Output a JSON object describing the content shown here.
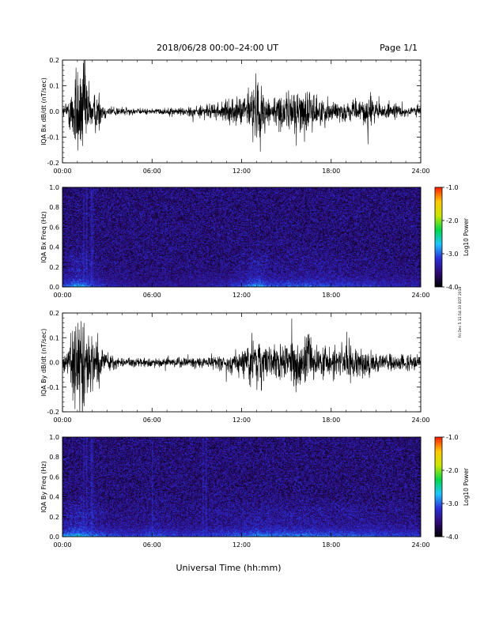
{
  "header": {
    "title": "2018/06/28  00:00–24:00 UT",
    "page": "Page 1/1"
  },
  "side_note": "Fri Dec 5 11:54:33 EDT 2018",
  "colors": {
    "trace": "#000000",
    "spectrogram_background": "#2a0f8f",
    "colorbar_stops": [
      "#000000",
      "#2d0a73",
      "#2a2fd6",
      "#1ec5ff",
      "#00d84a",
      "#c8e600",
      "#ffc800",
      "#ff1a00"
    ]
  },
  "chart_data": [
    {
      "type": "line",
      "ylabel": "IQA Bx dB/dt (nT/sec)",
      "xlabel": "",
      "x_ticks": [
        "00:00",
        "06:00",
        "12:00",
        "18:00",
        "24:00"
      ],
      "xlim": [
        0,
        24
      ],
      "ylim": [
        -0.2,
        0.2
      ],
      "y_ticks": [
        "0.2",
        "0.1",
        "0.0",
        "-0.1",
        "-0.2"
      ],
      "envelope": {
        "hours": [
          0,
          0.3,
          0.6,
          0.9,
          1.2,
          1.5,
          1.8,
          2.1,
          2.4,
          2.7,
          3,
          4,
          5,
          6,
          7,
          8,
          9,
          10,
          11,
          12,
          12.5,
          13,
          13.5,
          14,
          15,
          15.5,
          16,
          16.5,
          17,
          18,
          19,
          20,
          20.5,
          21,
          22,
          23,
          24
        ],
        "amplitude": [
          0.015,
          0.04,
          0.08,
          0.2,
          0.15,
          0.2,
          0.08,
          0.06,
          0.08,
          0.03,
          0.02,
          0.015,
          0.01,
          0.01,
          0.012,
          0.015,
          0.02,
          0.025,
          0.035,
          0.05,
          0.08,
          0.12,
          0.07,
          0.05,
          0.06,
          0.09,
          0.07,
          0.08,
          0.05,
          0.04,
          0.03,
          0.035,
          0.08,
          0.03,
          0.025,
          0.02,
          0.02
        ]
      }
    },
    {
      "type": "heatmap",
      "ylabel": "IQA Bx Freq (Hz)",
      "xlabel": "",
      "x_ticks": [
        "00:00",
        "06:00",
        "12:00",
        "18:00",
        "24:00"
      ],
      "xlim": [
        0,
        24
      ],
      "ylim": [
        0,
        1
      ],
      "y_ticks": [
        "1.0",
        "0.8",
        "0.6",
        "0.4",
        "0.2",
        "0.0"
      ],
      "colorbar": {
        "label": "Log10 Power",
        "ticks": [
          "-1.0",
          "-2.0",
          "-3.0",
          "-4.0"
        ],
        "range": [
          -4,
          -1
        ]
      },
      "low_freq_band": {
        "hours": [
          0,
          1,
          2,
          3,
          5,
          8,
          11,
          12,
          13,
          14,
          16,
          18,
          20,
          22,
          24
        ],
        "level": [
          -3.0,
          -2.6,
          -3.0,
          -3.2,
          -3.4,
          -3.4,
          -3.2,
          -3.0,
          -2.6,
          -3.0,
          -2.9,
          -3.0,
          -3.1,
          -3.2,
          -3.3
        ]
      },
      "vertical_bursts_hours": [
        1.4,
        1.6,
        1.9,
        2.0
      ]
    },
    {
      "type": "line",
      "ylabel": "IQA By dB/dt (nT/sec)",
      "xlabel": "",
      "x_ticks": [
        "00:00",
        "06:00",
        "12:00",
        "18:00",
        "24:00"
      ],
      "xlim": [
        0,
        24
      ],
      "ylim": [
        -0.2,
        0.2
      ],
      "y_ticks": [
        "0.2",
        "0.1",
        "0.0",
        "-0.1",
        "-0.2"
      ],
      "envelope": {
        "hours": [
          0,
          0.3,
          0.6,
          0.9,
          1.2,
          1.5,
          1.8,
          2.1,
          2.4,
          2.7,
          3,
          4,
          5,
          6,
          7,
          8,
          9,
          10,
          11,
          12,
          12.5,
          13,
          13.5,
          14,
          15,
          15.5,
          16,
          16.5,
          17,
          18,
          19,
          20,
          20.5,
          21,
          22,
          23,
          24
        ],
        "amplitude": [
          0.02,
          0.05,
          0.1,
          0.2,
          0.18,
          0.2,
          0.12,
          0.1,
          0.1,
          0.04,
          0.03,
          0.02,
          0.015,
          0.015,
          0.015,
          0.02,
          0.02,
          0.025,
          0.03,
          0.05,
          0.08,
          0.1,
          0.07,
          0.05,
          0.07,
          0.09,
          0.07,
          0.12,
          0.06,
          0.05,
          0.07,
          0.05,
          0.04,
          0.03,
          0.03,
          0.03,
          0.02
        ]
      }
    },
    {
      "type": "heatmap",
      "ylabel": "IQA By Freq (Hz)",
      "xlabel": "Universal Time (hh:mm)",
      "x_ticks": [
        "00:00",
        "06:00",
        "12:00",
        "18:00",
        "24:00"
      ],
      "xlim": [
        0,
        24
      ],
      "ylim": [
        0,
        1
      ],
      "y_ticks": [
        "1.0",
        "0.8",
        "0.6",
        "0.4",
        "0.2",
        "0.0"
      ],
      "colorbar": {
        "label": "Log10 Power",
        "ticks": [
          "-1.0",
          "-2.0",
          "-3.0",
          "-4.0"
        ],
        "range": [
          -4,
          -1
        ]
      },
      "low_freq_band": {
        "hours": [
          0,
          1,
          2,
          3,
          5,
          6,
          8,
          10,
          12,
          13,
          14,
          16,
          18,
          20,
          22,
          24
        ],
        "level": [
          -2.8,
          -2.5,
          -2.8,
          -3.0,
          -3.1,
          -2.9,
          -3.1,
          -3.0,
          -2.9,
          -2.7,
          -2.8,
          -2.8,
          -2.9,
          -2.9,
          -3.0,
          -3.1
        ]
      },
      "vertical_bursts_hours": [
        1.4,
        1.6,
        1.9,
        2.0,
        6.0,
        9.4,
        9.6
      ]
    }
  ]
}
